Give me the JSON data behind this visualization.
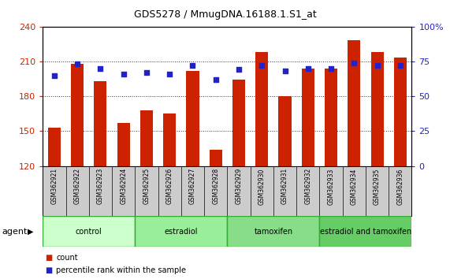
{
  "title": "GDS5278 / MmugDNA.16188.1.S1_at",
  "samples": [
    "GSM362921",
    "GSM362922",
    "GSM362923",
    "GSM362924",
    "GSM362925",
    "GSM362926",
    "GSM362927",
    "GSM362928",
    "GSM362929",
    "GSM362930",
    "GSM362931",
    "GSM362932",
    "GSM362933",
    "GSM362934",
    "GSM362935",
    "GSM362936"
  ],
  "counts": [
    153,
    208,
    193,
    157,
    168,
    165,
    202,
    134,
    194,
    218,
    180,
    204,
    204,
    228,
    218,
    213
  ],
  "percentiles": [
    65,
    73,
    70,
    66,
    67,
    66,
    72,
    62,
    69,
    72,
    68,
    70,
    70,
    74,
    72,
    72
  ],
  "groups": [
    {
      "label": "control",
      "start": 0,
      "end": 4,
      "color": "#ccffcc"
    },
    {
      "label": "estradiol",
      "start": 4,
      "end": 8,
      "color": "#99ee99"
    },
    {
      "label": "tamoxifen",
      "start": 8,
      "end": 12,
      "color": "#88dd88"
    },
    {
      "label": "estradiol and tamoxifen",
      "start": 12,
      "end": 16,
      "color": "#66cc66"
    }
  ],
  "ylim_left": [
    120,
    240
  ],
  "ylim_right": [
    0,
    100
  ],
  "yticks_left": [
    120,
    150,
    180,
    210,
    240
  ],
  "yticks_right": [
    0,
    25,
    50,
    75,
    100
  ],
  "bar_color": "#cc2200",
  "dot_color": "#2222cc",
  "background_color": "#ffffff",
  "plot_bg_color": "#ffffff",
  "grid_color": "#333333",
  "left_label_color": "#cc2200",
  "right_label_color": "#2222cc",
  "legend_count_color": "#cc2200",
  "legend_pct_color": "#2222cc",
  "agent_label": "agent",
  "xtick_bg": "#cccccc",
  "group_border_color": "#33aa33"
}
